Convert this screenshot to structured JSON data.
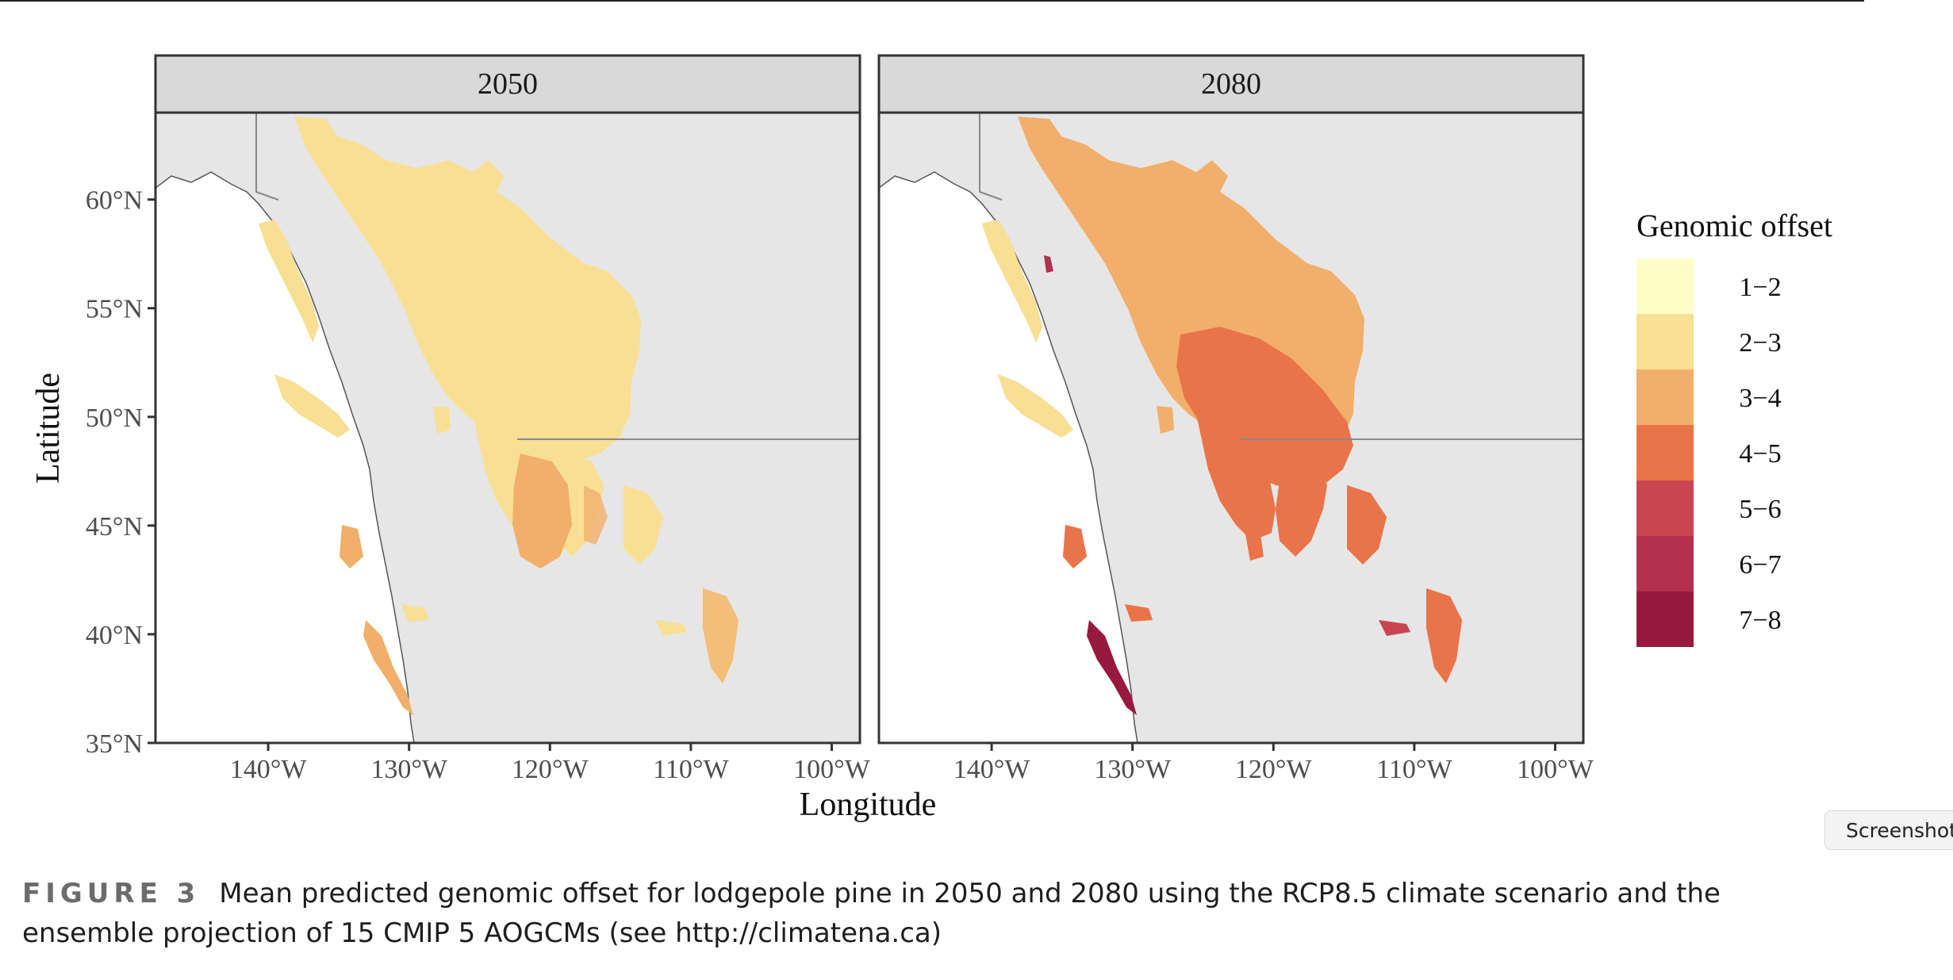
{
  "figure": {
    "panels": [
      {
        "title": "2050"
      },
      {
        "title": "2080"
      }
    ],
    "x_axis": {
      "label": "Longitude",
      "ticks": [
        "140°W",
        "130°W",
        "120°W",
        "110°W",
        "100°W"
      ],
      "tick_values": [
        -140,
        -130,
        -120,
        -110,
        -100
      ],
      "range": [
        -148,
        -98
      ]
    },
    "y_axis": {
      "label": "Latitude",
      "ticks": [
        "35°N",
        "40°N",
        "45°N",
        "50°N",
        "55°N",
        "60°N"
      ],
      "tick_values": [
        35,
        40,
        45,
        50,
        55,
        60
      ],
      "range": [
        35,
        64
      ]
    },
    "legend": {
      "title": "Genomic offset",
      "placement": "right",
      "items": [
        {
          "label": "1−2",
          "color": "#fefdc6"
        },
        {
          "label": "2−3",
          "color": "#f8df94"
        },
        {
          "label": "3−4",
          "color": "#f1af6b"
        },
        {
          "label": "4−5",
          "color": "#e9744a"
        },
        {
          "label": "5−6",
          "color": "#c9454f"
        },
        {
          "label": "6−7",
          "color": "#b4304f"
        },
        {
          "label": "7−8",
          "color": "#97193f"
        }
      ]
    },
    "colors": {
      "panel_background": "#e6e6e6",
      "land": "#ffffff",
      "strip": "#d9d9d9",
      "border_line": "#888888"
    }
  },
  "caption": {
    "label": "FIGURE 3",
    "text": "Mean predicted genomic offset for lodgepole pine in 2050 and 2080 using the RCP8.5 climate scenario and the ensemble projection of 15 CMIP 5 AOGCMs (see http://climatena.ca)"
  },
  "screenshot_tab": {
    "label": "Screenshot"
  }
}
